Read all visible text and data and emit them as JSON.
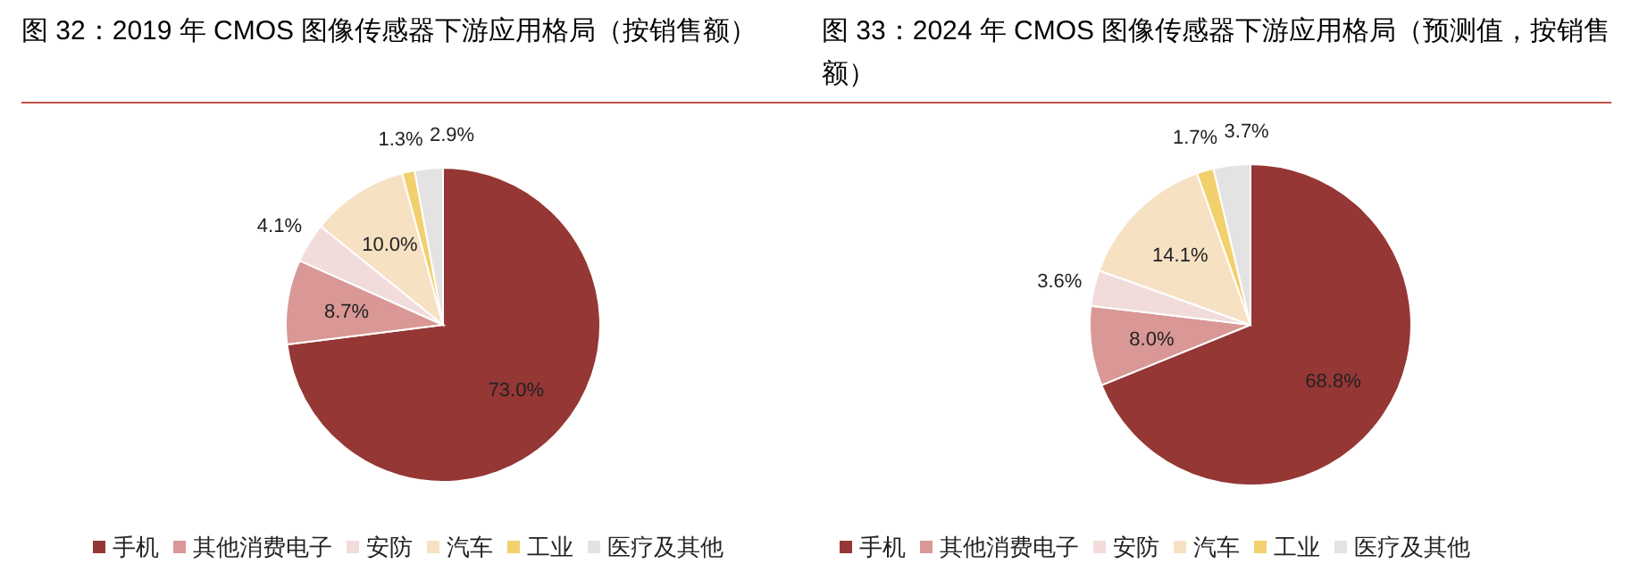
{
  "chart_data": [
    {
      "type": "pie",
      "title": "图 32：2019 年 CMOS 图像传感器下游应用格局（按销售额）",
      "categories": [
        "手机",
        "其他消费电子",
        "安防",
        "汽车",
        "工业",
        "医疗及其他"
      ],
      "values": [
        73.0,
        8.7,
        4.1,
        10.0,
        1.3,
        2.9
      ],
      "value_labels": [
        "73.0%",
        "8.7%",
        "4.1%",
        "10.0%",
        "1.3%",
        "2.9%"
      ],
      "colors": [
        "#953735",
        "#d99795",
        "#f2dcdb",
        "#f6e1c3",
        "#f2d06e",
        "#e3e3e3"
      ],
      "legend": "bottom"
    },
    {
      "type": "pie",
      "title": "图 33：2024 年 CMOS 图像传感器下游应用格局（预测值，按销售额）",
      "categories": [
        "手机",
        "其他消费电子",
        "安防",
        "汽车",
        "工业",
        "医疗及其他"
      ],
      "values": [
        68.8,
        8.0,
        3.6,
        14.1,
        1.7,
        3.7
      ],
      "value_labels": [
        "68.8%",
        "8.0%",
        "3.6%",
        "14.1%",
        "1.7%",
        "3.7%"
      ],
      "colors": [
        "#953735",
        "#d99795",
        "#f2dcdb",
        "#f6e1c3",
        "#f2d06e",
        "#e3e3e3"
      ],
      "legend": "bottom"
    }
  ]
}
